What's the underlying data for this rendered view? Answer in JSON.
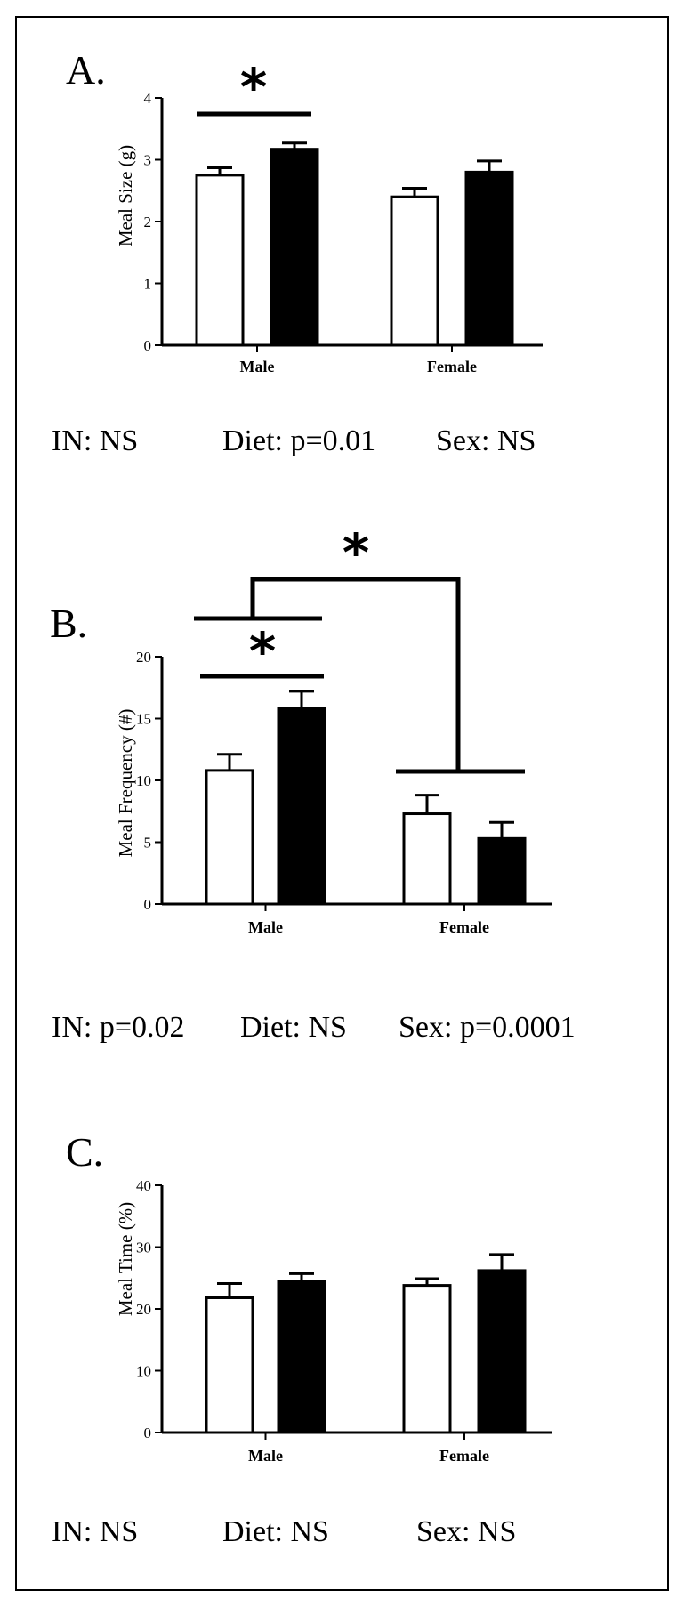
{
  "panels": [
    {
      "letter": "A.",
      "stats": [
        "IN: NS",
        "Diet: p=0.01",
        "Sex: NS"
      ],
      "star_text": "*"
    },
    {
      "letter": "B.",
      "stats": [
        "IN: p=0.02",
        "Diet: NS",
        "Sex: p=0.0001"
      ],
      "star_text": "*"
    },
    {
      "letter": "C.",
      "stats": [
        "IN: NS",
        "Diet: NS",
        "Sex: NS"
      ],
      "star_text": ""
    }
  ],
  "colors": {
    "white_bar": "#ffffff",
    "black_bar": "#000000",
    "axis": "#000000"
  },
  "chart_data": [
    {
      "type": "bar",
      "ylabel": "Meal Size (g)",
      "categories": [
        "Male",
        "Female"
      ],
      "ylim": [
        0,
        4
      ],
      "yticks": [
        0,
        1,
        2,
        3,
        4
      ],
      "series": [
        {
          "fill": "white",
          "values": [
            2.75,
            2.4
          ],
          "errors": [
            0.12,
            0.14
          ]
        },
        {
          "fill": "black",
          "values": [
            3.17,
            2.8
          ],
          "errors": [
            0.1,
            0.18
          ]
        }
      ],
      "significance": [
        "Male white vs black: *"
      ]
    },
    {
      "type": "bar",
      "ylabel": "Meal Frequency (#)",
      "categories": [
        "Male",
        "Female"
      ],
      "ylim": [
        0,
        20
      ],
      "yticks": [
        0,
        5,
        10,
        15,
        20
      ],
      "series": [
        {
          "fill": "white",
          "values": [
            10.8,
            7.3
          ],
          "errors": [
            1.3,
            1.5
          ]
        },
        {
          "fill": "black",
          "values": [
            15.8,
            5.3
          ],
          "errors": [
            1.4,
            1.3
          ]
        }
      ],
      "significance": [
        "Male white vs black: *",
        "Male vs Female: *"
      ]
    },
    {
      "type": "bar",
      "ylabel": "Meal Time (%)",
      "categories": [
        "Male",
        "Female"
      ],
      "ylim": [
        0,
        40
      ],
      "yticks": [
        0,
        10,
        20,
        30,
        40
      ],
      "series": [
        {
          "fill": "white",
          "values": [
            21.8,
            23.8
          ],
          "errors": [
            2.3,
            1.1
          ]
        },
        {
          "fill": "black",
          "values": [
            24.4,
            26.2
          ],
          "errors": [
            1.3,
            2.6
          ]
        }
      ],
      "significance": []
    }
  ]
}
